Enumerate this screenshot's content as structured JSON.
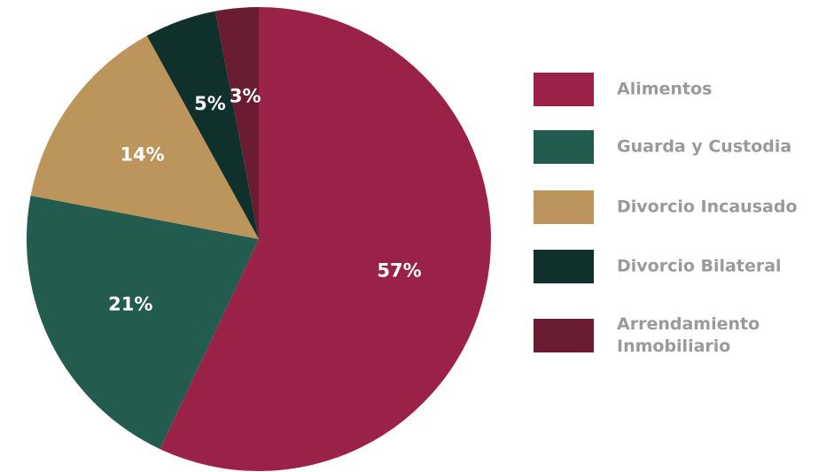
{
  "chart_data": {
    "type": "pie",
    "title": "",
    "categories": [
      "Alimentos",
      "Guarda y Custodia",
      "Divorcio Incausado",
      "Divorcio Bilateral",
      "Arrendamiento Inmobiliario"
    ],
    "values": [
      57,
      21,
      14,
      5,
      3
    ],
    "labels": [
      "57%",
      "21%",
      "14%",
      "5%",
      "3%"
    ],
    "unit": "%",
    "colors": [
      "#9a2148",
      "#235b4e",
      "#bc955c",
      "#10312b",
      "#691c32"
    ],
    "start": "12 o'clock",
    "direction": "clockwise",
    "legend_position": "right",
    "legend": [
      {
        "label": "Alimentos",
        "color": "#9a2148"
      },
      {
        "label": "Guarda y Custodia",
        "color": "#235b4e"
      },
      {
        "label": "Divorcio Incausado",
        "color": "#bc955c"
      },
      {
        "label": "Divorcio Bilateral",
        "color": "#10312b"
      },
      {
        "label": "Arrendamiento Inmobiliario",
        "color": "#691c32"
      }
    ]
  }
}
